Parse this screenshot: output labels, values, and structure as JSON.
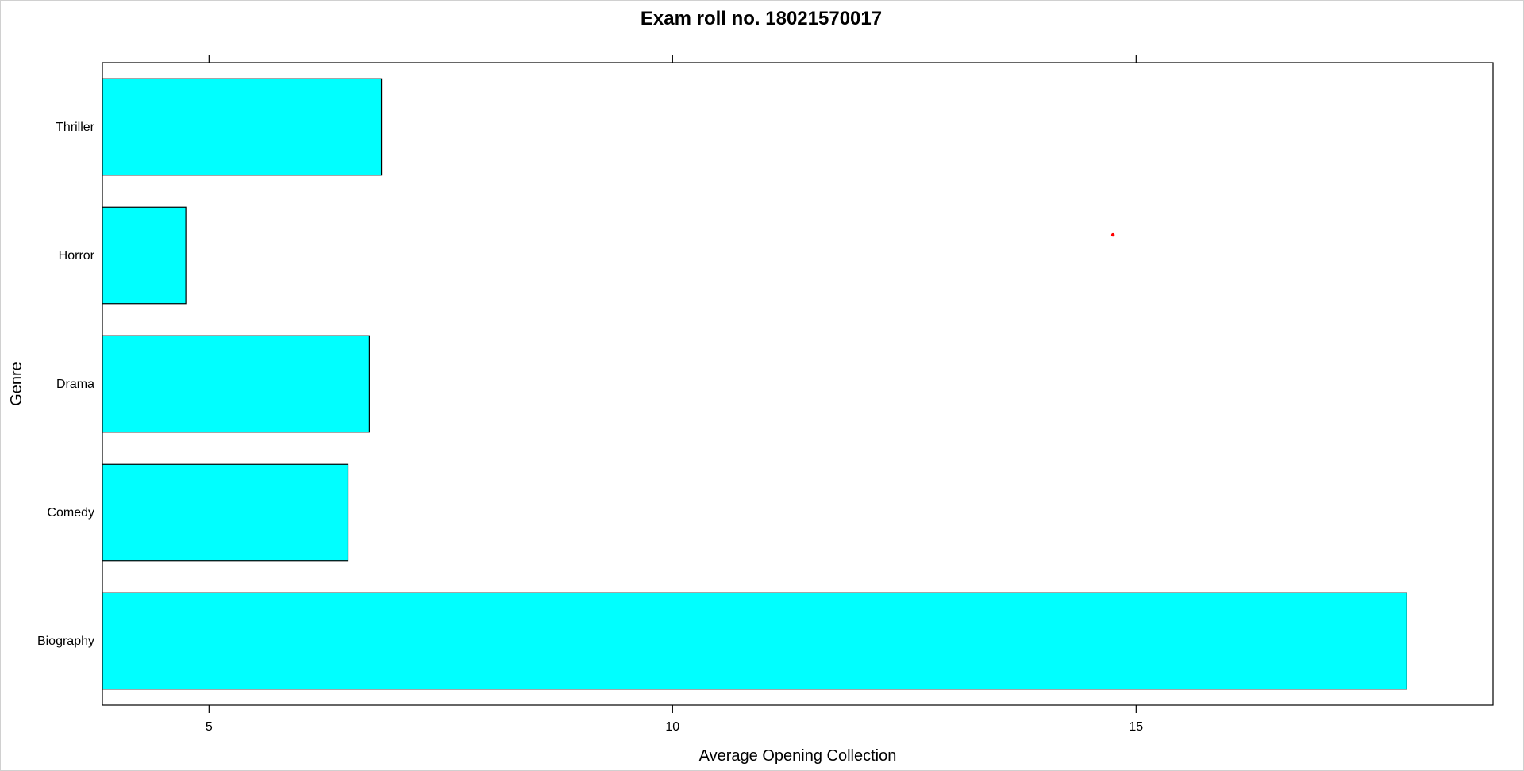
{
  "chart_data": {
    "type": "bar",
    "orientation": "horizontal",
    "title": "Exam roll no. 18021570017",
    "xlabel": "Average Opening Collection",
    "ylabel": "Genre",
    "categories": [
      "Biography",
      "Comedy",
      "Drama",
      "Horror",
      "Thriller"
    ],
    "values": [
      17.92,
      6.5,
      6.73,
      4.75,
      6.86
    ],
    "xlim": [
      3.85,
      18.85
    ],
    "xticks": [
      5,
      10,
      15
    ],
    "bar_color": "#00ffff",
    "bar_border_color": "#000000",
    "grid": false,
    "legend": "none",
    "annotations": [
      {
        "type": "point",
        "x": 14.75,
        "category_position": 3.66,
        "color": "#ff0000"
      }
    ]
  }
}
